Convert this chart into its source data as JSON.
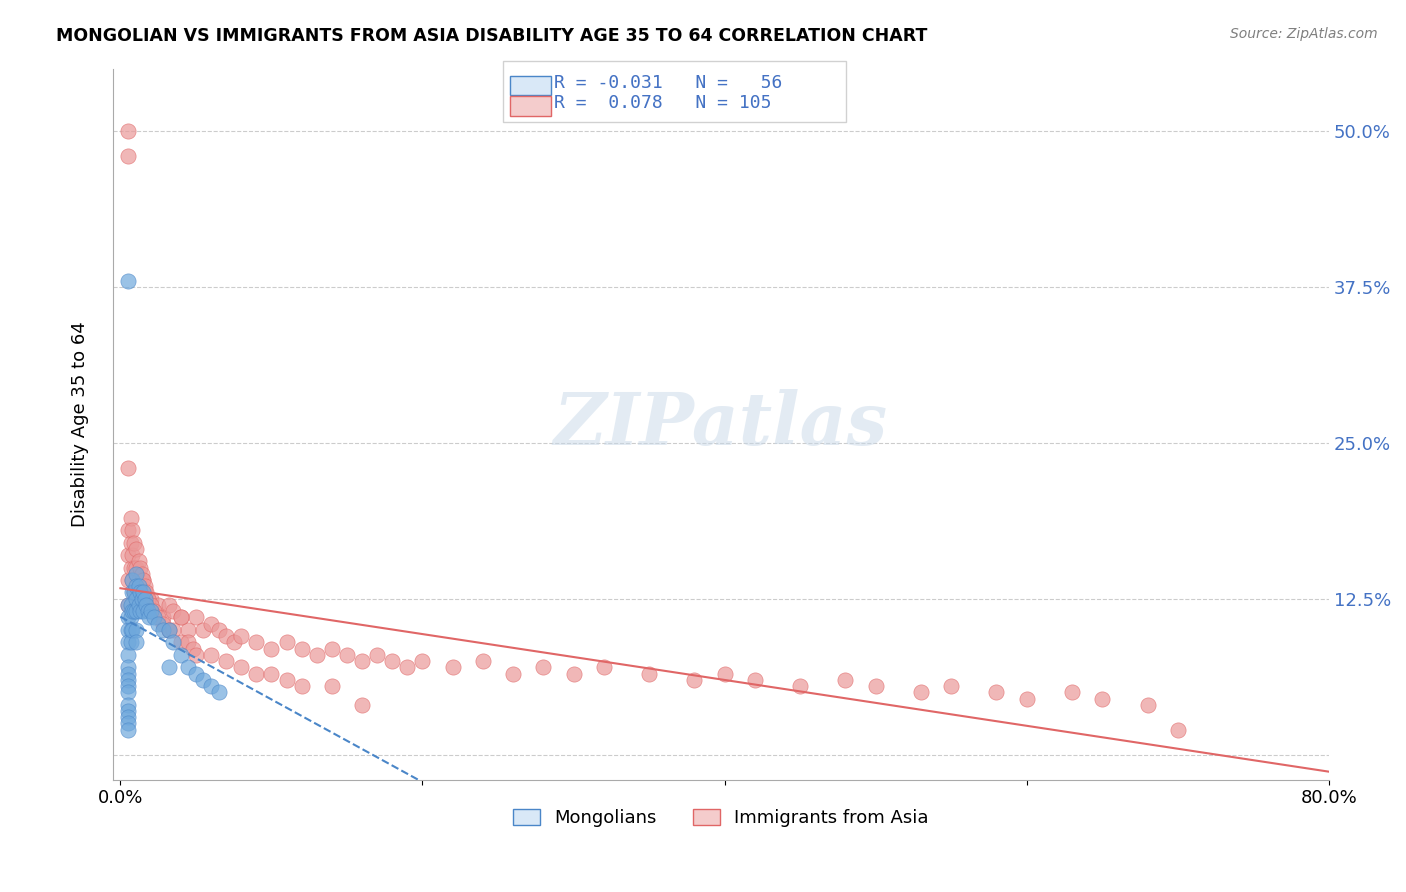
{
  "title": "MONGOLIAN VS IMMIGRANTS FROM ASIA DISABILITY AGE 35 TO 64 CORRELATION CHART",
  "source": "Source: ZipAtlas.com",
  "ylabel": "Disability Age 35 to 64",
  "xlabel": "",
  "xlim": [
    0.0,
    0.8
  ],
  "ylim": [
    -0.02,
    0.55
  ],
  "yticks": [
    0.0,
    0.125,
    0.25,
    0.375,
    0.5
  ],
  "ytick_labels": [
    "",
    "12.5%",
    "25.0%",
    "37.5%",
    "50.0%"
  ],
  "xticks": [
    0.0,
    0.2,
    0.4,
    0.6,
    0.8
  ],
  "xtick_labels": [
    "0.0%",
    "",
    "",
    "",
    "80.0%"
  ],
  "mongolians_R": -0.031,
  "mongolians_N": 56,
  "immigrants_R": 0.078,
  "immigrants_N": 105,
  "mongolian_color": "#6fa8dc",
  "immigrant_color": "#ea9999",
  "trend_mongolian_color": "#4a86c8",
  "trend_immigrant_color": "#e06666",
  "watermark": "ZIPatlas",
  "mongolian_x": [
    0.005,
    0.005,
    0.005,
    0.005,
    0.005,
    0.005,
    0.005,
    0.005,
    0.005,
    0.005,
    0.007,
    0.007,
    0.007,
    0.007,
    0.008,
    0.008,
    0.008,
    0.008,
    0.009,
    0.009,
    0.01,
    0.01,
    0.01,
    0.01,
    0.01,
    0.01,
    0.012,
    0.012,
    0.013,
    0.013,
    0.014,
    0.015,
    0.015,
    0.016,
    0.017,
    0.018,
    0.019,
    0.02,
    0.022,
    0.025,
    0.028,
    0.032,
    0.032,
    0.035,
    0.04,
    0.045,
    0.05,
    0.055,
    0.06,
    0.065,
    0.005,
    0.005,
    0.005,
    0.005,
    0.005,
    0.005
  ],
  "mongolian_y": [
    0.12,
    0.11,
    0.1,
    0.09,
    0.08,
    0.07,
    0.065,
    0.06,
    0.055,
    0.05,
    0.12,
    0.11,
    0.1,
    0.09,
    0.14,
    0.13,
    0.115,
    0.1,
    0.13,
    0.115,
    0.145,
    0.135,
    0.125,
    0.115,
    0.1,
    0.09,
    0.135,
    0.12,
    0.13,
    0.115,
    0.125,
    0.13,
    0.115,
    0.125,
    0.12,
    0.115,
    0.11,
    0.115,
    0.11,
    0.105,
    0.1,
    0.1,
    0.07,
    0.09,
    0.08,
    0.07,
    0.065,
    0.06,
    0.055,
    0.05,
    0.04,
    0.035,
    0.03,
    0.025,
    0.02,
    0.38
  ],
  "immigrant_x": [
    0.005,
    0.005,
    0.005,
    0.005,
    0.007,
    0.007,
    0.008,
    0.008,
    0.009,
    0.009,
    0.01,
    0.01,
    0.012,
    0.012,
    0.013,
    0.014,
    0.015,
    0.015,
    0.016,
    0.017,
    0.018,
    0.019,
    0.02,
    0.022,
    0.025,
    0.028,
    0.032,
    0.032,
    0.035,
    0.04,
    0.045,
    0.05,
    0.055,
    0.06,
    0.065,
    0.07,
    0.075,
    0.08,
    0.09,
    0.1,
    0.11,
    0.12,
    0.13,
    0.14,
    0.15,
    0.16,
    0.17,
    0.18,
    0.19,
    0.2,
    0.22,
    0.24,
    0.26,
    0.28,
    0.3,
    0.32,
    0.35,
    0.38,
    0.4,
    0.42,
    0.45,
    0.48,
    0.5,
    0.53,
    0.55,
    0.58,
    0.6,
    0.63,
    0.65,
    0.68,
    0.7,
    0.005,
    0.005,
    0.005,
    0.007,
    0.008,
    0.009,
    0.01,
    0.012,
    0.013,
    0.014,
    0.015,
    0.016,
    0.017,
    0.018,
    0.02,
    0.022,
    0.025,
    0.028,
    0.032,
    0.035,
    0.04,
    0.04,
    0.045,
    0.048,
    0.05,
    0.06,
    0.07,
    0.08,
    0.09,
    0.1,
    0.11,
    0.12,
    0.14,
    0.16
  ],
  "immigrant_y": [
    0.18,
    0.16,
    0.14,
    0.12,
    0.17,
    0.15,
    0.16,
    0.14,
    0.15,
    0.13,
    0.15,
    0.13,
    0.14,
    0.12,
    0.13,
    0.13,
    0.14,
    0.12,
    0.13,
    0.12,
    0.125,
    0.12,
    0.125,
    0.115,
    0.12,
    0.11,
    0.12,
    0.1,
    0.115,
    0.11,
    0.1,
    0.11,
    0.1,
    0.105,
    0.1,
    0.095,
    0.09,
    0.095,
    0.09,
    0.085,
    0.09,
    0.085,
    0.08,
    0.085,
    0.08,
    0.075,
    0.08,
    0.075,
    0.07,
    0.075,
    0.07,
    0.075,
    0.065,
    0.07,
    0.065,
    0.07,
    0.065,
    0.06,
    0.065,
    0.06,
    0.055,
    0.06,
    0.055,
    0.05,
    0.055,
    0.05,
    0.045,
    0.05,
    0.045,
    0.04,
    0.02,
    0.5,
    0.48,
    0.23,
    0.19,
    0.18,
    0.17,
    0.165,
    0.155,
    0.15,
    0.145,
    0.14,
    0.135,
    0.13,
    0.125,
    0.12,
    0.115,
    0.11,
    0.105,
    0.1,
    0.1,
    0.09,
    0.11,
    0.09,
    0.085,
    0.08,
    0.08,
    0.075,
    0.07,
    0.065,
    0.065,
    0.06,
    0.055,
    0.055,
    0.04
  ]
}
